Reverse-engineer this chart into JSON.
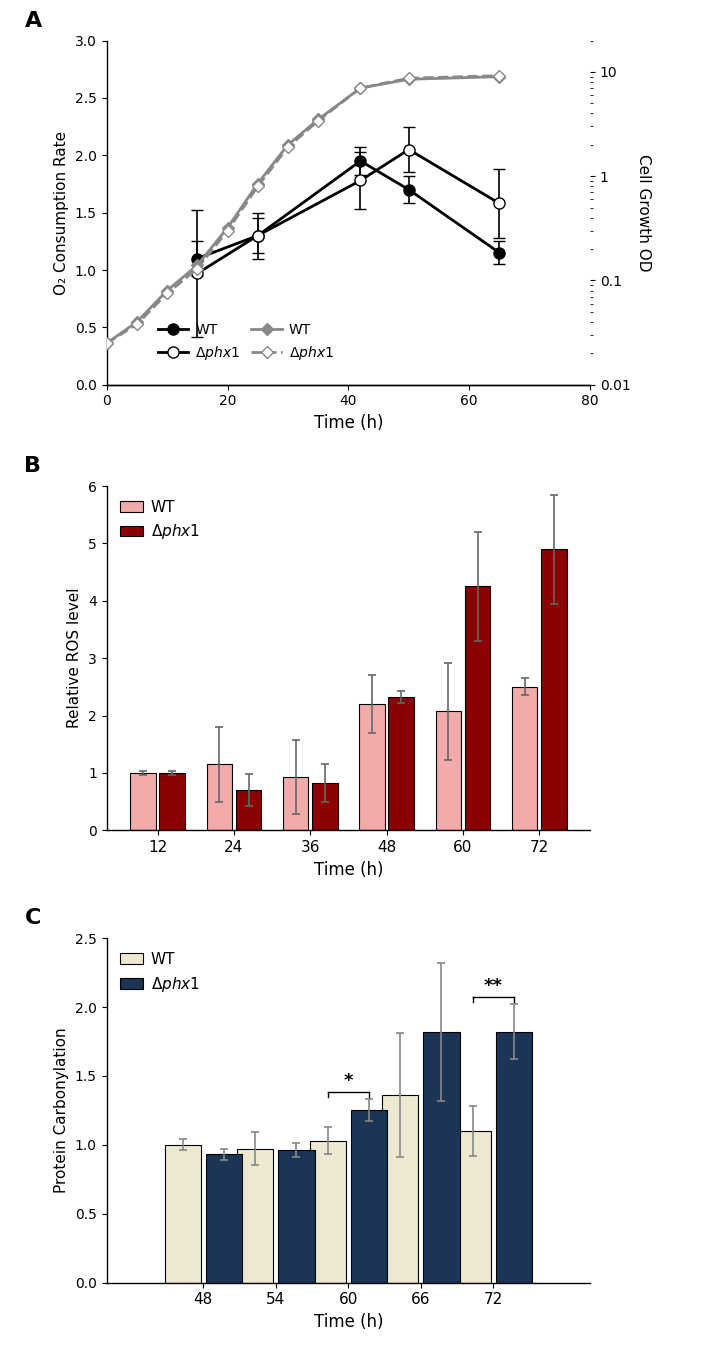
{
  "panel_A": {
    "o2_wt_x": [
      15,
      25,
      42,
      50,
      65
    ],
    "o2_wt_y": [
      1.1,
      1.3,
      1.95,
      1.7,
      1.15
    ],
    "o2_wt_err": [
      0.15,
      0.15,
      0.12,
      0.12,
      0.1
    ],
    "o2_phx1_x": [
      15,
      25,
      42,
      50,
      65
    ],
    "o2_phx1_y": [
      0.97,
      1.3,
      1.78,
      2.05,
      1.58
    ],
    "o2_phx1_err": [
      0.55,
      0.2,
      0.25,
      0.2,
      0.3
    ],
    "od_wt_x": [
      0,
      5,
      10,
      15,
      20,
      25,
      30,
      35,
      42,
      50,
      65
    ],
    "od_wt_y": [
      0.025,
      0.04,
      0.08,
      0.14,
      0.32,
      0.85,
      2.0,
      3.5,
      7.0,
      8.5,
      9.0
    ],
    "od_phx1_x": [
      0,
      5,
      10,
      15,
      20,
      25,
      30,
      35,
      42,
      50,
      65
    ],
    "od_phx1_y": [
      0.025,
      0.038,
      0.075,
      0.13,
      0.3,
      0.8,
      1.9,
      3.4,
      7.0,
      8.7,
      9.2
    ],
    "xlabel": "Time (h)",
    "ylabel_left": "O₂ Consumption Rate",
    "ylabel_right": "Cell Growth OD",
    "ylim_left": [
      0,
      3.0
    ],
    "xlim": [
      0,
      80
    ],
    "yticks_left": [
      0,
      0.5,
      1.0,
      1.5,
      2.0,
      2.5,
      3.0
    ],
    "xticks": [
      0,
      20,
      40,
      60,
      80
    ]
  },
  "panel_B": {
    "timepoints": [
      12,
      24,
      36,
      48,
      60,
      72
    ],
    "wt_y": [
      1.0,
      1.15,
      0.93,
      2.2,
      2.07,
      2.5
    ],
    "wt_err": [
      0.04,
      0.65,
      0.65,
      0.5,
      0.85,
      0.15
    ],
    "phx1_y": [
      1.0,
      0.7,
      0.82,
      2.32,
      4.25,
      4.9
    ],
    "phx1_err": [
      0.04,
      0.28,
      0.33,
      0.1,
      0.95,
      0.95
    ],
    "wt_color": "#F2AAAA",
    "phx1_color": "#8B0000",
    "xlabel": "Time (h)",
    "ylabel": "Relative ROS level",
    "ylim": [
      0,
      6
    ],
    "yticks": [
      0,
      1,
      2,
      3,
      4,
      5,
      6
    ],
    "xtick_labels": [
      "12",
      "24",
      "36",
      "48",
      "60",
      "72"
    ]
  },
  "panel_C": {
    "timepoints": [
      48,
      54,
      60,
      66,
      72
    ],
    "wt_y": [
      1.0,
      0.97,
      1.03,
      1.36,
      1.1
    ],
    "wt_err": [
      0.04,
      0.12,
      0.1,
      0.45,
      0.18
    ],
    "phx1_y": [
      0.93,
      0.96,
      1.25,
      1.82,
      1.82
    ],
    "phx1_err": [
      0.04,
      0.05,
      0.08,
      0.5,
      0.2
    ],
    "wt_color": "#EDE8D0",
    "phx1_color": "#1C3557",
    "xlabel": "Time (h)",
    "ylabel": "Protein Carbonylation",
    "ylim": [
      0,
      2.5
    ],
    "yticks": [
      0,
      0.5,
      1.0,
      1.5,
      2.0,
      2.5
    ],
    "xtick_labels": [
      "48",
      "54",
      "60",
      "66",
      "72"
    ],
    "sig_60": "*",
    "sig_72": "**"
  }
}
